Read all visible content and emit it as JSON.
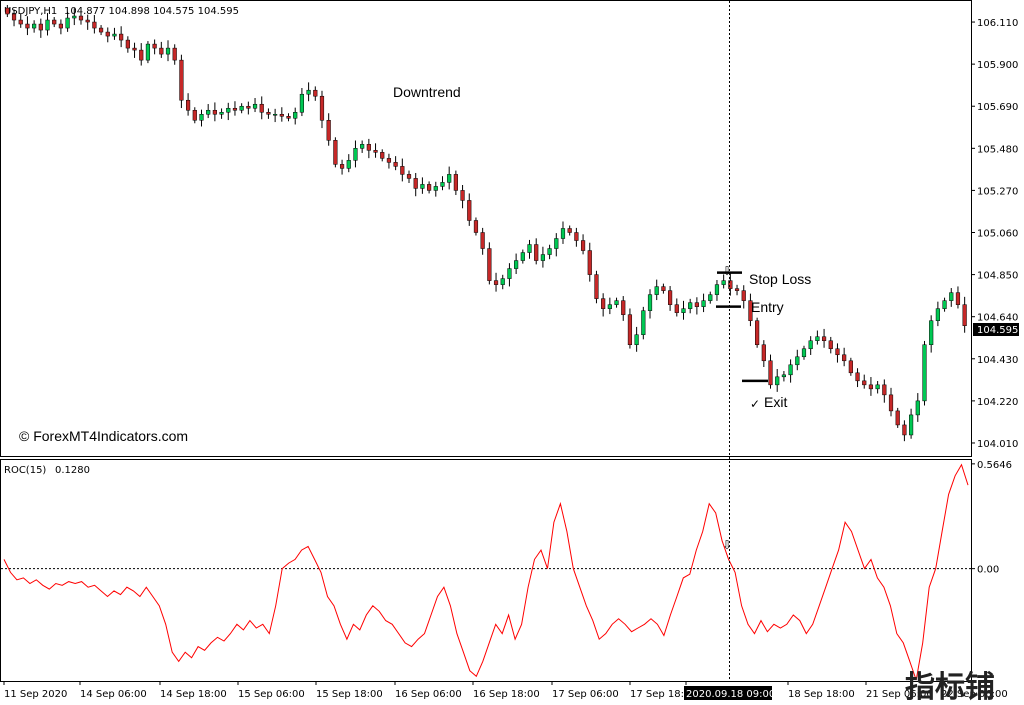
{
  "header": {
    "symbol_label": "USDJPY,H1",
    "ohlc": "104.877 104.898 104.575 104.595"
  },
  "watermark": "© ForexMT4Indicators.com",
  "logo_text": "指标铺",
  "annotations": {
    "trend": "Downtrend",
    "stop_loss": "Stop Loss",
    "entry": "Entry",
    "exit": "Exit",
    "check_mark": "✓",
    "arrow_glyph": "⇩"
  },
  "colors": {
    "bull": "#26a69a",
    "bull_fill": "#00c853",
    "bear": "#c62828",
    "roc_line": "#ff0000",
    "crosshair": "#000000",
    "current_price_bg": "#000000",
    "current_price_text": "#ffffff"
  },
  "chart_data": [
    {
      "type": "candlestick",
      "title": "USDJPY,H1",
      "ylim": [
        103.95,
        106.21
      ],
      "yticks": [
        "106.110",
        "105.900",
        "105.690",
        "105.480",
        "105.270",
        "105.060",
        "104.850",
        "104.640",
        "104.430",
        "104.220",
        "104.010"
      ],
      "current_price": "104.595",
      "closes": [
        106.15,
        106.12,
        106.1,
        106.08,
        106.1,
        106.07,
        106.12,
        106.1,
        106.08,
        106.13,
        106.14,
        106.12,
        106.11,
        106.08,
        106.06,
        106.04,
        106.05,
        106.02,
        105.98,
        105.97,
        105.92,
        106.0,
        105.98,
        105.95,
        105.98,
        105.92,
        105.72,
        105.67,
        105.62,
        105.65,
        105.67,
        105.65,
        105.66,
        105.68,
        105.67,
        105.69,
        105.68,
        105.7,
        105.66,
        105.65,
        105.65,
        105.64,
        105.63,
        105.66,
        105.75,
        105.77,
        105.74,
        105.62,
        105.52,
        105.4,
        105.38,
        105.42,
        105.48,
        105.5,
        105.47,
        105.46,
        105.43,
        105.41,
        105.39,
        105.35,
        105.33,
        105.28,
        105.3,
        105.27,
        105.29,
        105.31,
        105.35,
        105.27,
        105.22,
        105.12,
        105.06,
        104.98,
        104.82,
        104.8,
        104.83,
        104.88,
        104.92,
        104.96,
        105.0,
        104.92,
        104.95,
        104.98,
        105.03,
        105.08,
        105.06,
        105.02,
        104.97,
        104.85,
        104.73,
        104.68,
        104.7,
        104.72,
        104.65,
        104.5,
        104.55,
        104.67,
        104.75,
        104.79,
        104.77,
        104.7,
        104.66,
        104.68,
        104.71,
        104.69,
        104.72,
        104.75,
        104.8,
        104.82,
        104.78,
        104.77,
        104.72,
        104.62,
        104.5,
        104.42,
        104.3,
        104.34,
        104.35,
        104.4,
        104.44,
        104.48,
        104.52,
        104.54,
        104.52,
        104.48,
        104.45,
        104.42,
        104.36,
        104.32,
        104.3,
        104.28,
        104.3,
        104.25,
        104.17,
        104.1,
        104.05,
        104.15,
        104.22,
        104.5,
        104.62,
        104.68,
        104.72,
        104.76,
        104.7,
        104.595
      ],
      "markers": [
        {
          "label": "Stop Loss",
          "price": 104.86
        },
        {
          "label": "Entry",
          "price": 104.69
        },
        {
          "label": "Exit",
          "price": 104.32
        }
      ]
    },
    {
      "type": "line",
      "title": "ROC(15)",
      "value_label": "0.1280",
      "ylim": [
        -0.6,
        0.58
      ],
      "yticks": [
        "0.5646",
        "0.00"
      ],
      "zero_line": true,
      "values": [
        0.05,
        -0.02,
        -0.06,
        -0.05,
        -0.08,
        -0.06,
        -0.09,
        -0.11,
        -0.08,
        -0.09,
        -0.07,
        -0.08,
        -0.07,
        -0.1,
        -0.09,
        -0.12,
        -0.15,
        -0.12,
        -0.14,
        -0.1,
        -0.12,
        -0.15,
        -0.1,
        -0.15,
        -0.2,
        -0.3,
        -0.45,
        -0.5,
        -0.45,
        -0.48,
        -0.42,
        -0.44,
        -0.4,
        -0.37,
        -0.39,
        -0.35,
        -0.3,
        -0.33,
        -0.28,
        -0.32,
        -0.3,
        -0.35,
        -0.2,
        0.0,
        0.03,
        0.05,
        0.1,
        0.12,
        0.05,
        -0.02,
        -0.15,
        -0.2,
        -0.3,
        -0.38,
        -0.3,
        -0.33,
        -0.25,
        -0.2,
        -0.23,
        -0.28,
        -0.3,
        -0.35,
        -0.4,
        -0.42,
        -0.38,
        -0.35,
        -0.25,
        -0.15,
        -0.1,
        -0.2,
        -0.35,
        -0.45,
        -0.55,
        -0.58,
        -0.5,
        -0.4,
        -0.3,
        -0.35,
        -0.25,
        -0.38,
        -0.3,
        -0.1,
        0.05,
        0.1,
        0.0,
        0.25,
        0.35,
        0.2,
        0.0,
        -0.1,
        -0.2,
        -0.28,
        -0.38,
        -0.35,
        -0.3,
        -0.27,
        -0.3,
        -0.34,
        -0.32,
        -0.3,
        -0.27,
        -0.3,
        -0.36,
        -0.25,
        -0.15,
        -0.05,
        -0.03,
        0.1,
        0.2,
        0.35,
        0.3,
        0.15,
        0.05,
        -0.02,
        -0.2,
        -0.3,
        -0.35,
        -0.28,
        -0.34,
        -0.3,
        -0.32,
        -0.3,
        -0.25,
        -0.28,
        -0.35,
        -0.3,
        -0.2,
        -0.1,
        0.0,
        0.1,
        0.25,
        0.2,
        0.1,
        0.0,
        0.05,
        -0.05,
        -0.1,
        -0.2,
        -0.35,
        -0.4,
        -0.5,
        -0.6,
        -0.4,
        -0.1,
        0.0,
        0.2,
        0.4,
        0.5,
        0.56,
        0.45
      ],
      "x_labels": [
        "11 Sep 2020",
        "14 Sep 06:00",
        "14 Sep 18:00",
        "15 Sep 06:00",
        "15 Sep 18:00",
        "16 Sep 06:00",
        "16 Sep 18:00",
        "17 Sep 06:00",
        "17 Sep 18:00",
        "2020.09.18 09:00",
        "18 Sep 18:00",
        "21 Sep 06:00",
        "22 Sep 06:00"
      ],
      "highlight_x_label": "2020.09.18 09:00"
    }
  ]
}
